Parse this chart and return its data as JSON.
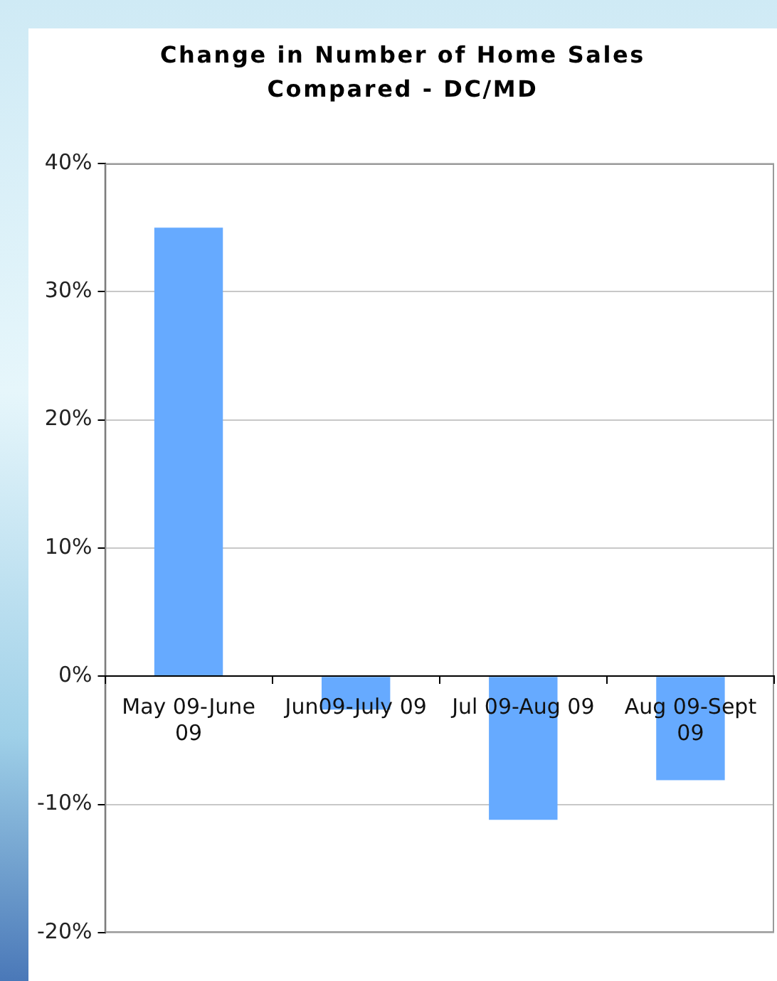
{
  "chart_data": {
    "type": "bar",
    "title": "Change in Number of Home Sales Compared - DC/MD",
    "categories": [
      "May 09-June 09",
      "Jun09-July 09",
      "Jul 09-Aug 09",
      "Aug 09-Sept 09"
    ],
    "values": [
      35,
      -2.6,
      -11.2,
      -8.1
    ],
    "color": "#66aaff",
    "ylim": [
      -20,
      40
    ],
    "yticks": [
      {
        "value": -20,
        "label": "-20%"
      },
      {
        "value": -10,
        "label": "-10%"
      },
      {
        "value": 0,
        "label": "0%"
      },
      {
        "value": 10,
        "label": "10%"
      },
      {
        "value": 20,
        "label": "20%"
      },
      {
        "value": 30,
        "label": "30%"
      },
      {
        "value": 40,
        "label": "40%"
      }
    ],
    "grid": "y"
  }
}
